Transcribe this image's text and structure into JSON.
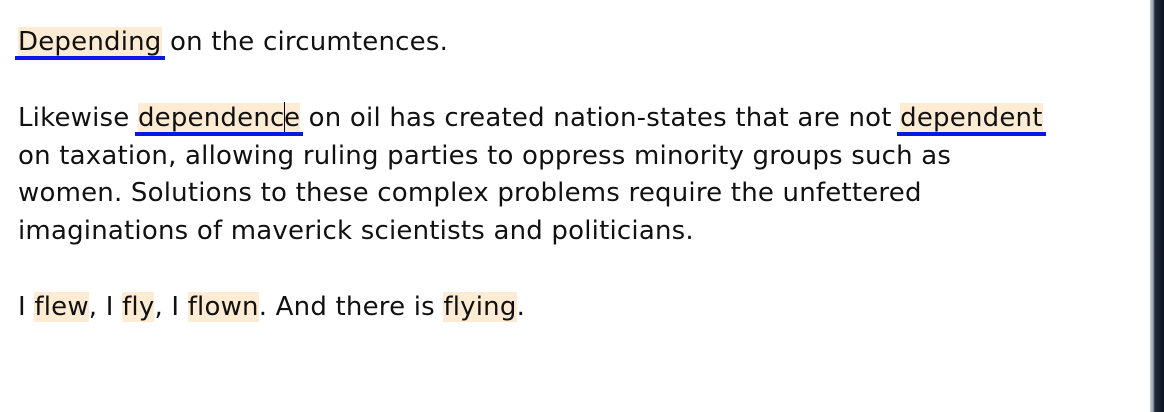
{
  "paragraph1": {
    "w1": "Depending",
    "t1": " on the circumtences."
  },
  "paragraph2": {
    "line1": {
      "t1": "Likewise ",
      "w1a": "dependenc",
      "w1b": "e",
      "t2": " on oil has created nation-states that are not ",
      "w2": "dependent"
    },
    "line2": "on taxation, allowing ruling parties to oppress minority groups such as",
    "line3": "women. Solutions to these complex problems require the unfettered",
    "line4": "imaginations of maverick scientists and politicians."
  },
  "paragraph3": {
    "t1": "I ",
    "w1": "flew",
    "t2": ", I ",
    "w2": "fly",
    "t3": ", I ",
    "w3": "flown",
    "t4": ". And there is ",
    "w4": "flying",
    "t5": "."
  },
  "colors": {
    "highlight": "#fdebd3",
    "underline": "#0a18e6",
    "text": "#111111"
  }
}
